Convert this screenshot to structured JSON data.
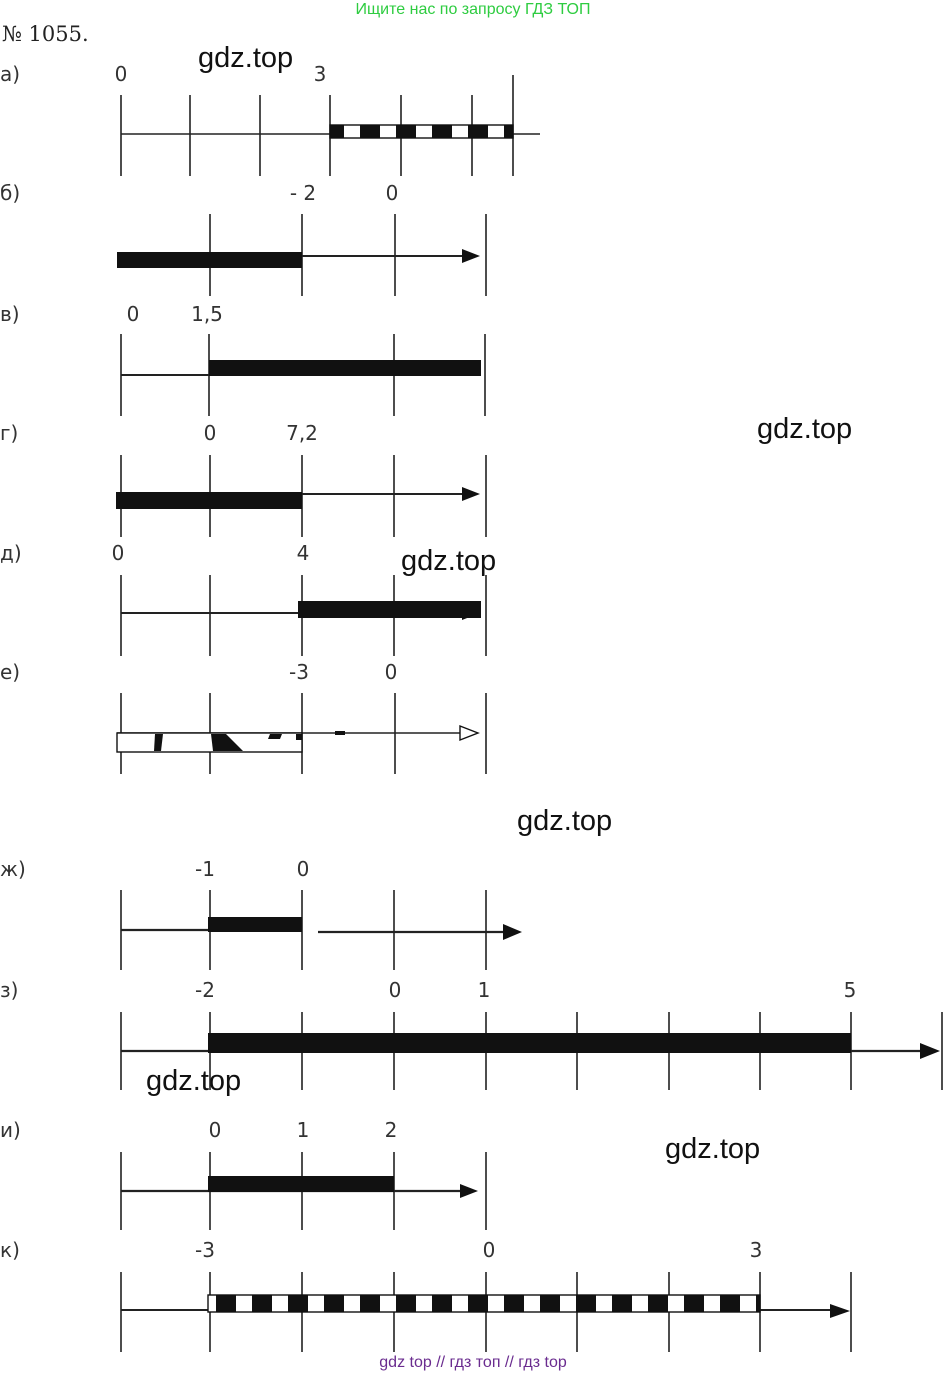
{
  "header_text": "Ищите нас по запросу ГДЗ ТОП",
  "title": "№ 1055.",
  "parts": [
    {
      "label": "а)",
      "ticks": [
        {
          "text": "0"
        },
        {
          "text": "3"
        }
      ]
    },
    {
      "label": "б)",
      "ticks": [
        {
          "text": "- 2"
        },
        {
          "text": "0"
        }
      ]
    },
    {
      "label": "в)",
      "ticks": [
        {
          "text": "0"
        },
        {
          "text": "1,5"
        }
      ]
    },
    {
      "label": "г)",
      "ticks": [
        {
          "text": "0"
        },
        {
          "text": "7,2"
        }
      ]
    },
    {
      "label": "д)",
      "ticks": [
        {
          "text": "0"
        },
        {
          "text": "4"
        }
      ]
    },
    {
      "label": "е)",
      "ticks": [
        {
          "text": "-3"
        },
        {
          "text": "0"
        }
      ]
    },
    {
      "label": "ж)",
      "ticks": [
        {
          "text": "-1"
        },
        {
          "text": "0"
        }
      ]
    },
    {
      "label": "з)",
      "ticks": [
        {
          "text": "-2"
        },
        {
          "text": "0"
        },
        {
          "text": "1"
        },
        {
          "text": "5"
        }
      ]
    },
    {
      "label": "и)",
      "ticks": [
        {
          "text": "0"
        },
        {
          "text": "1"
        },
        {
          "text": "2"
        }
      ]
    },
    {
      "label": "к)",
      "ticks": [
        {
          "text": "-3"
        },
        {
          "text": "0"
        },
        {
          "text": "3"
        }
      ]
    }
  ],
  "watermarks": [
    "gdz.top",
    "gdz.top",
    "gdz.top",
    "gdz.top",
    "gdz.top",
    "gdz.top"
  ],
  "footer_text": "gdz top  //  гдз топ  //  гдз top"
}
